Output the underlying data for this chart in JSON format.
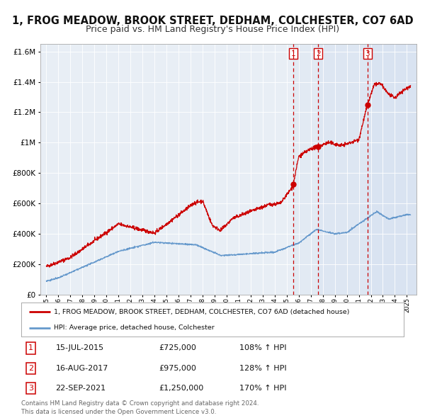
{
  "title": "1, FROG MEADOW, BROOK STREET, DEDHAM, COLCHESTER, CO7 6AD",
  "subtitle": "Price paid vs. HM Land Registry's House Price Index (HPI)",
  "title_fontsize": 10.5,
  "subtitle_fontsize": 9,
  "red_line_color": "#cc0000",
  "blue_line_color": "#6699cc",
  "background_color": "#ffffff",
  "plot_bg_color": "#e8eef5",
  "grid_color": "#ffffff",
  "sale_dates_str": [
    "15-JUL-2015",
    "16-AUG-2017",
    "22-SEP-2021"
  ],
  "sale_prices": [
    725000,
    975000,
    1250000
  ],
  "sale_hpi_pct": [
    "108%",
    "128%",
    "170%"
  ],
  "sale_years": [
    2015.54,
    2017.62,
    2021.72
  ],
  "legend_red": "1, FROG MEADOW, BROOK STREET, DEDHAM, COLCHESTER, CO7 6AD (detached house)",
  "legend_blue": "HPI: Average price, detached house, Colchester",
  "footer1": "Contains HM Land Registry data © Crown copyright and database right 2024.",
  "footer2": "This data is licensed under the Open Government Licence v3.0.",
  "ylim": [
    0,
    1650000
  ],
  "xlim_start": 1994.5,
  "xlim_end": 2025.8
}
